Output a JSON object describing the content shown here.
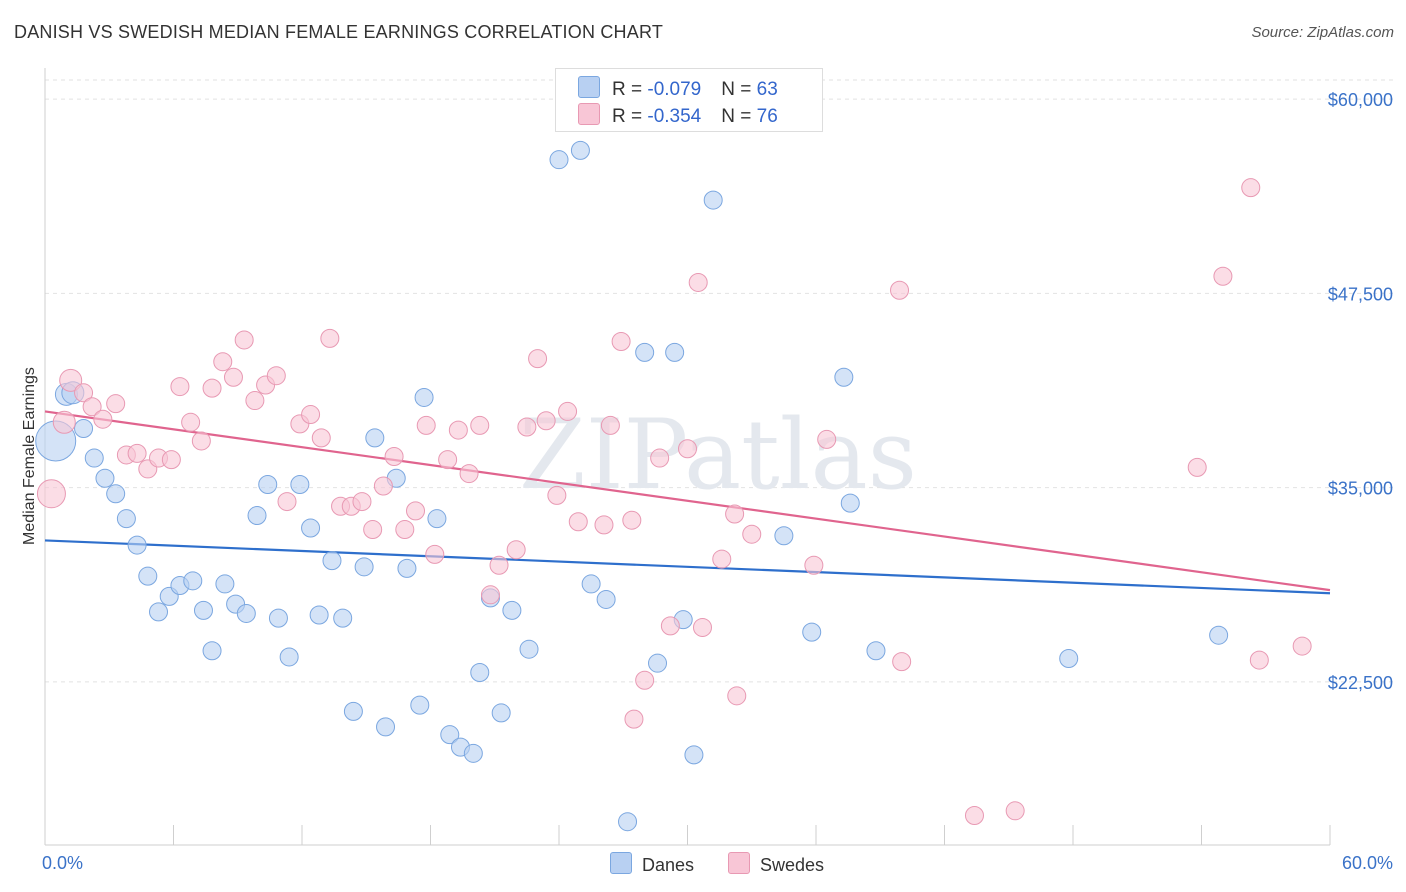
{
  "header": {
    "title": "DANISH VS SWEDISH MEDIAN FEMALE EARNINGS CORRELATION CHART",
    "source": "Source: ZipAtlas.com"
  },
  "watermark": "ZIPatlas",
  "legend_top": {
    "danes": {
      "r_label": "R = ",
      "r_value": "-0.079",
      "n_label": "N = ",
      "n_value": "63"
    },
    "swedes": {
      "r_label": "R = ",
      "r_value": "-0.354",
      "n_label": "N = ",
      "n_value": "76"
    }
  },
  "colors": {
    "danes_fill": "#b8d0f2",
    "danes_stroke": "#7ba7e0",
    "danes_line": "#2e6fcc",
    "swedes_fill": "#f8c6d6",
    "swedes_stroke": "#e899b3",
    "swedes_line": "#e0648e",
    "tick_label": "#3a72c8"
  },
  "chart_data": {
    "type": "scatter",
    "title": "DANISH VS SWEDISH MEDIAN FEMALE EARNINGS CORRELATION CHART",
    "xlabel": "",
    "ylabel": "Median Female Earnings",
    "xlim": [
      0,
      60
    ],
    "ylim": [
      12000,
      62000
    ],
    "x_tick_labels": [
      "0.0%",
      "60.0%"
    ],
    "y_ticks": [
      22500,
      35000,
      47500,
      60000
    ],
    "y_tick_labels": [
      "$22,500",
      "$35,000",
      "$47,500",
      "$60,000"
    ],
    "grid": true,
    "legend_position": "bottom-center",
    "series": [
      {
        "name": "Danes",
        "r": -0.079,
        "n": 63,
        "trend": [
          [
            0,
            31600
          ],
          [
            60,
            28200
          ]
        ],
        "points": [
          [
            0.5,
            38000,
            20
          ],
          [
            1.0,
            41000,
            11
          ],
          [
            1.3,
            41100,
            11
          ],
          [
            1.8,
            38800,
            9
          ],
          [
            2.3,
            36900,
            9
          ],
          [
            2.8,
            35600,
            9
          ],
          [
            3.3,
            34600,
            9
          ],
          [
            3.8,
            33000,
            9
          ],
          [
            4.3,
            31300,
            9
          ],
          [
            4.8,
            29300,
            9
          ],
          [
            5.3,
            27000,
            9
          ],
          [
            5.8,
            28000,
            9
          ],
          [
            6.3,
            28700,
            9
          ],
          [
            6.9,
            29000,
            9
          ],
          [
            7.4,
            27100,
            9
          ],
          [
            7.8,
            24500,
            9
          ],
          [
            8.4,
            28800,
            9
          ],
          [
            8.9,
            27500,
            9
          ],
          [
            9.4,
            26900,
            9
          ],
          [
            9.9,
            33200,
            9
          ],
          [
            10.4,
            35200,
            9
          ],
          [
            10.9,
            26600,
            9
          ],
          [
            11.4,
            24100,
            9
          ],
          [
            11.9,
            35200,
            9
          ],
          [
            12.4,
            32400,
            9
          ],
          [
            12.8,
            26800,
            9
          ],
          [
            13.4,
            30300,
            9
          ],
          [
            13.9,
            26600,
            9
          ],
          [
            14.4,
            20600,
            9
          ],
          [
            14.9,
            29900,
            9
          ],
          [
            15.4,
            38200,
            9
          ],
          [
            15.9,
            19600,
            9
          ],
          [
            16.4,
            35600,
            9
          ],
          [
            16.9,
            29800,
            9
          ],
          [
            17.5,
            21000,
            9
          ],
          [
            17.7,
            40800,
            9
          ],
          [
            18.3,
            33000,
            9
          ],
          [
            18.9,
            19100,
            9
          ],
          [
            19.4,
            18300,
            9
          ],
          [
            20.0,
            17900,
            9
          ],
          [
            20.3,
            23100,
            9
          ],
          [
            20.8,
            27900,
            9
          ],
          [
            21.3,
            20500,
            9
          ],
          [
            21.8,
            27100,
            9
          ],
          [
            22.6,
            24600,
            9
          ],
          [
            24.0,
            56100,
            9
          ],
          [
            25.0,
            56700,
            9
          ],
          [
            25.5,
            28800,
            9
          ],
          [
            26.2,
            27800,
            9
          ],
          [
            27.2,
            13500,
            9
          ],
          [
            28.0,
            43700,
            9
          ],
          [
            28.6,
            23700,
            9
          ],
          [
            29.4,
            43700,
            9
          ],
          [
            29.8,
            26500,
            9
          ],
          [
            30.3,
            17800,
            9
          ],
          [
            31.2,
            53500,
            9
          ],
          [
            34.5,
            31900,
            9
          ],
          [
            35.8,
            25700,
            9
          ],
          [
            37.3,
            42100,
            9
          ],
          [
            37.6,
            34000,
            9
          ],
          [
            38.8,
            24500,
            9
          ],
          [
            47.8,
            24000,
            9
          ],
          [
            54.8,
            25500,
            9
          ]
        ]
      },
      {
        "name": "Swedes",
        "r": -0.354,
        "n": 76,
        "trend": [
          [
            0,
            39900
          ],
          [
            60,
            28400
          ]
        ],
        "points": [
          [
            0.3,
            34600,
            14
          ],
          [
            0.9,
            39200,
            11
          ],
          [
            1.2,
            41900,
            11
          ],
          [
            1.8,
            41100,
            9
          ],
          [
            2.2,
            40200,
            9
          ],
          [
            2.7,
            39400,
            9
          ],
          [
            3.3,
            40400,
            9
          ],
          [
            3.8,
            37100,
            9
          ],
          [
            4.3,
            37200,
            9
          ],
          [
            4.8,
            36200,
            9
          ],
          [
            5.3,
            36900,
            9
          ],
          [
            5.9,
            36800,
            9
          ],
          [
            6.3,
            41500,
            9
          ],
          [
            6.8,
            39200,
            9
          ],
          [
            7.3,
            38000,
            9
          ],
          [
            7.8,
            41400,
            9
          ],
          [
            8.3,
            43100,
            9
          ],
          [
            8.8,
            42100,
            9
          ],
          [
            9.3,
            44500,
            9
          ],
          [
            9.8,
            40600,
            9
          ],
          [
            10.3,
            41600,
            9
          ],
          [
            10.8,
            42200,
            9
          ],
          [
            11.3,
            34100,
            9
          ],
          [
            11.9,
            39100,
            9
          ],
          [
            12.4,
            39700,
            9
          ],
          [
            12.9,
            38200,
            9
          ],
          [
            13.3,
            44600,
            9
          ],
          [
            13.8,
            33800,
            9
          ],
          [
            14.3,
            33800,
            9
          ],
          [
            14.8,
            34100,
            9
          ],
          [
            15.3,
            32300,
            9
          ],
          [
            15.8,
            35100,
            9
          ],
          [
            16.3,
            37000,
            9
          ],
          [
            16.8,
            32300,
            9
          ],
          [
            17.3,
            33500,
            9
          ],
          [
            17.8,
            39000,
            9
          ],
          [
            18.2,
            30700,
            9
          ],
          [
            18.8,
            36800,
            9
          ],
          [
            19.3,
            38700,
            9
          ],
          [
            19.8,
            35900,
            9
          ],
          [
            20.3,
            39000,
            9
          ],
          [
            20.8,
            28100,
            9
          ],
          [
            21.2,
            30000,
            9
          ],
          [
            22.0,
            31000,
            9
          ],
          [
            22.5,
            38900,
            9
          ],
          [
            23.0,
            43300,
            9
          ],
          [
            23.4,
            39300,
            9
          ],
          [
            23.9,
            34500,
            9
          ],
          [
            24.4,
            39900,
            9
          ],
          [
            24.9,
            32800,
            9
          ],
          [
            26.1,
            32600,
            9
          ],
          [
            26.4,
            39000,
            9
          ],
          [
            26.9,
            44400,
            9
          ],
          [
            27.4,
            32900,
            9
          ],
          [
            27.5,
            20100,
            9
          ],
          [
            28.0,
            22600,
            9
          ],
          [
            28.7,
            36900,
            9
          ],
          [
            29.2,
            26100,
            9
          ],
          [
            30.0,
            37500,
            9
          ],
          [
            30.5,
            48200,
            9
          ],
          [
            30.7,
            26000,
            9
          ],
          [
            31.6,
            30400,
            9
          ],
          [
            32.2,
            33300,
            9
          ],
          [
            32.3,
            21600,
            9
          ],
          [
            33.0,
            32000,
            9
          ],
          [
            35.9,
            30000,
            9
          ],
          [
            36.5,
            38100,
            9
          ],
          [
            39.9,
            47700,
            9
          ],
          [
            40.0,
            23800,
            9
          ],
          [
            43.4,
            13900,
            9
          ],
          [
            45.3,
            14200,
            9
          ],
          [
            53.8,
            36300,
            9
          ],
          [
            55.0,
            48600,
            9
          ],
          [
            56.3,
            54300,
            9
          ],
          [
            56.7,
            23900,
            9
          ],
          [
            58.7,
            24800,
            9
          ]
        ]
      }
    ]
  },
  "legend_bottom": {
    "danes": "Danes",
    "swedes": "Swedes"
  }
}
